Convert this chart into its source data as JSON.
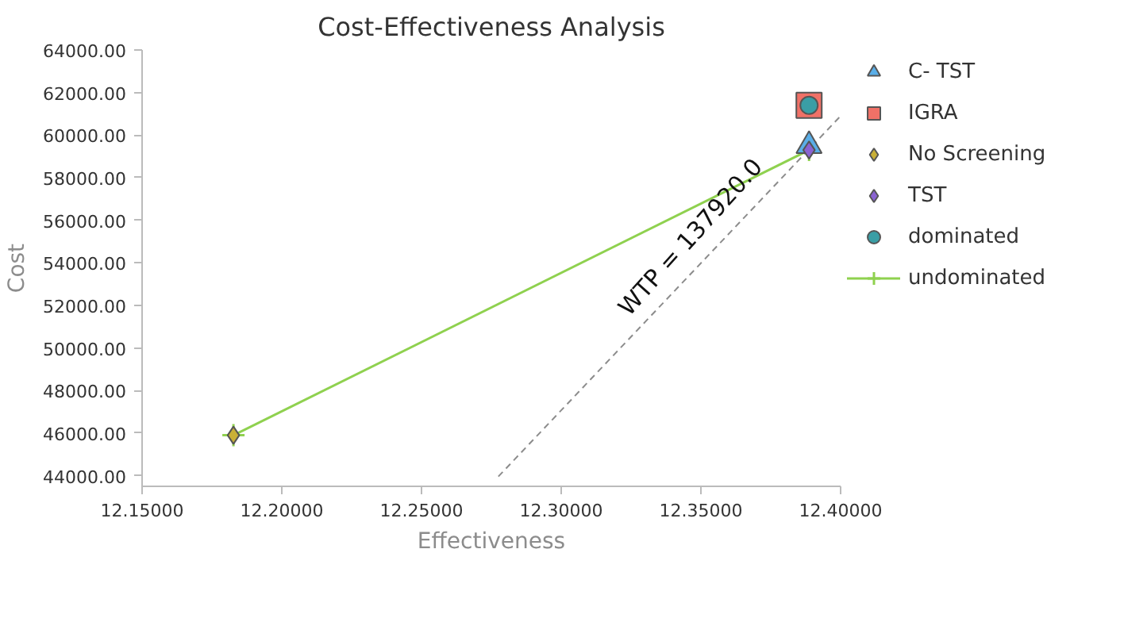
{
  "chart_data": {
    "type": "scatter",
    "title": "Cost-Effectiveness Analysis",
    "xlabel": "Effectiveness",
    "ylabel": "Cost",
    "xlim": [
      12.15,
      12.4
    ],
    "ylim": [
      43500,
      64000
    ],
    "xticks": [
      {
        "value": 12.15,
        "label": "12.15000"
      },
      {
        "value": 12.2,
        "label": "12.20000"
      },
      {
        "value": 12.25,
        "label": "12.25000"
      },
      {
        "value": 12.3,
        "label": "12.30000"
      },
      {
        "value": 12.35,
        "label": "12.35000"
      },
      {
        "value": 12.4,
        "label": "12.40000"
      }
    ],
    "yticks": [
      {
        "value": 44000,
        "label": "44000.00"
      },
      {
        "value": 46000,
        "label": "46000.00"
      },
      {
        "value": 48000,
        "label": "48000.00"
      },
      {
        "value": 50000,
        "label": "50000.00"
      },
      {
        "value": 52000,
        "label": "52000.00"
      },
      {
        "value": 54000,
        "label": "54000.00"
      },
      {
        "value": 56000,
        "label": "56000.00"
      },
      {
        "value": 58000,
        "label": "58000.00"
      },
      {
        "value": 60000,
        "label": "60000.00"
      },
      {
        "value": 62000,
        "label": "62000.00"
      },
      {
        "value": 64000,
        "label": "64000.00"
      }
    ],
    "grid": false,
    "legend": "right",
    "annotations": [
      "WTP = 137920.0"
    ],
    "series": [
      {
        "type": "line",
        "color": "#8c8c8c",
        "line_style": "dashed",
        "marker": "none",
        "x": [
          12.2775,
          12.4
        ],
        "values": [
          43960,
          60900
        ]
      },
      {
        "name": "undominated",
        "type": "line",
        "color": "#8fd14f",
        "marker": "cross",
        "x": [
          12.1827,
          12.3887
        ],
        "values": [
          45900,
          59300
        ]
      },
      {
        "name": "C- TST",
        "color": "#5aaee8",
        "marker": "triangle",
        "x": [
          12.3887
        ],
        "values": [
          59500
        ]
      },
      {
        "name": "IGRA",
        "color": "#f07167",
        "marker": "square",
        "x": [
          12.3887
        ],
        "values": [
          61400
        ]
      },
      {
        "name": "No Screening",
        "color": "#c9b037",
        "marker": "diamond",
        "x": [
          12.1827
        ],
        "values": [
          45900
        ]
      },
      {
        "name": "TST",
        "color": "#8a63d2",
        "marker": "diamond",
        "x": [
          12.3887
        ],
        "values": [
          59300
        ]
      },
      {
        "name": "dominated",
        "color": "#3a9ea5",
        "marker": "circle",
        "x": [
          12.3887
        ],
        "values": [
          61400
        ]
      }
    ]
  }
}
